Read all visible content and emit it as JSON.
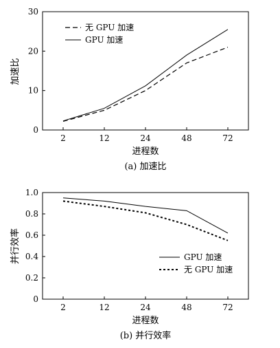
{
  "chart_data": [
    {
      "type": "line",
      "title": "",
      "caption": "(a) 加速比",
      "xlabel": "进程数",
      "ylabel": "加速比",
      "categories": [
        "2",
        "12",
        "24",
        "48",
        "72"
      ],
      "ylim": [
        0,
        30
      ],
      "yticks": [
        "0",
        "10",
        "20",
        "30"
      ],
      "grid": false,
      "legend": "top-left",
      "series": [
        {
          "name": "无 GPU 加速",
          "style": "dashed",
          "color": "#000000",
          "values": [
            2.2,
            5.0,
            10.0,
            17.0,
            21.0
          ]
        },
        {
          "name": "GPU 加速",
          "style": "solid",
          "color": "#000000",
          "values": [
            2.3,
            5.5,
            11.2,
            19.0,
            25.5
          ]
        }
      ]
    },
    {
      "type": "line",
      "title": "",
      "caption": "(b) 并行效率",
      "xlabel": "进程数",
      "ylabel": "并行效率",
      "categories": [
        "2",
        "12",
        "24",
        "48",
        "72"
      ],
      "ylim": [
        0,
        1.0
      ],
      "yticks": [
        "0",
        "0.2",
        "0.4",
        "0.6",
        "0.8",
        "1.0"
      ],
      "grid": false,
      "legend": "bottom-right",
      "series": [
        {
          "name": "GPU 加速",
          "style": "solid",
          "color": "#000000",
          "values": [
            0.95,
            0.92,
            0.87,
            0.83,
            0.62
          ]
        },
        {
          "name": "无 GPU 加速",
          "style": "dotted",
          "color": "#000000",
          "values": [
            0.92,
            0.87,
            0.81,
            0.7,
            0.55
          ]
        }
      ]
    }
  ]
}
